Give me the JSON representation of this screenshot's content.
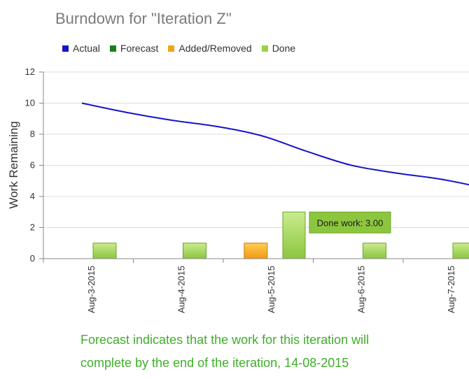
{
  "chart_data": {
    "type": "bar+line",
    "title": "Burndown for \"Iteration Z\"",
    "ylabel": "Work Remaining",
    "xlabel": "",
    "ylim": [
      0,
      12
    ],
    "yticks": [
      0,
      2,
      4,
      6,
      8,
      10,
      12
    ],
    "grid": true,
    "legend_position": "top-left",
    "categories": [
      "Aug-3-2015",
      "Aug-4-2015",
      "Aug-5-2015",
      "Aug-6-2015",
      "Aug-7-2015"
    ],
    "legend": [
      {
        "name": "Actual",
        "color": "#1515c8"
      },
      {
        "name": "Forecast",
        "color": "#1a7f1a"
      },
      {
        "name": "Added/Removed",
        "color": "#f2a31b"
      },
      {
        "name": "Done",
        "color": "#9dd04a"
      }
    ],
    "actual_line": {
      "name": "Actual",
      "x": [
        -0.25,
        0.25,
        0.75,
        1.25,
        1.75,
        2.25,
        2.75,
        3.25,
        3.75,
        4.25,
        4.5
      ],
      "y": [
        10,
        9.4,
        8.9,
        8.5,
        7.9,
        6.9,
        6.0,
        5.5,
        5.1,
        4.5,
        4.1
      ]
    },
    "bars": [
      {
        "series": "Done",
        "x": 0,
        "value": 1
      },
      {
        "series": "Done",
        "x": 1,
        "value": 1
      },
      {
        "series": "Added/Removed",
        "x": 1.68,
        "value": 1
      },
      {
        "series": "Done",
        "x": 2,
        "value": 3
      },
      {
        "series": "Done",
        "x": 3,
        "value": 1
      },
      {
        "series": "Done",
        "x": 4,
        "value": 1
      }
    ],
    "tooltip": {
      "text": "Done work: 3.00",
      "bar_index": 3
    }
  },
  "forecast_note": {
    "line1": "Forecast indicates that the work for this iteration will",
    "line2": "complete by the end of the iteration, 14-08-2015"
  }
}
